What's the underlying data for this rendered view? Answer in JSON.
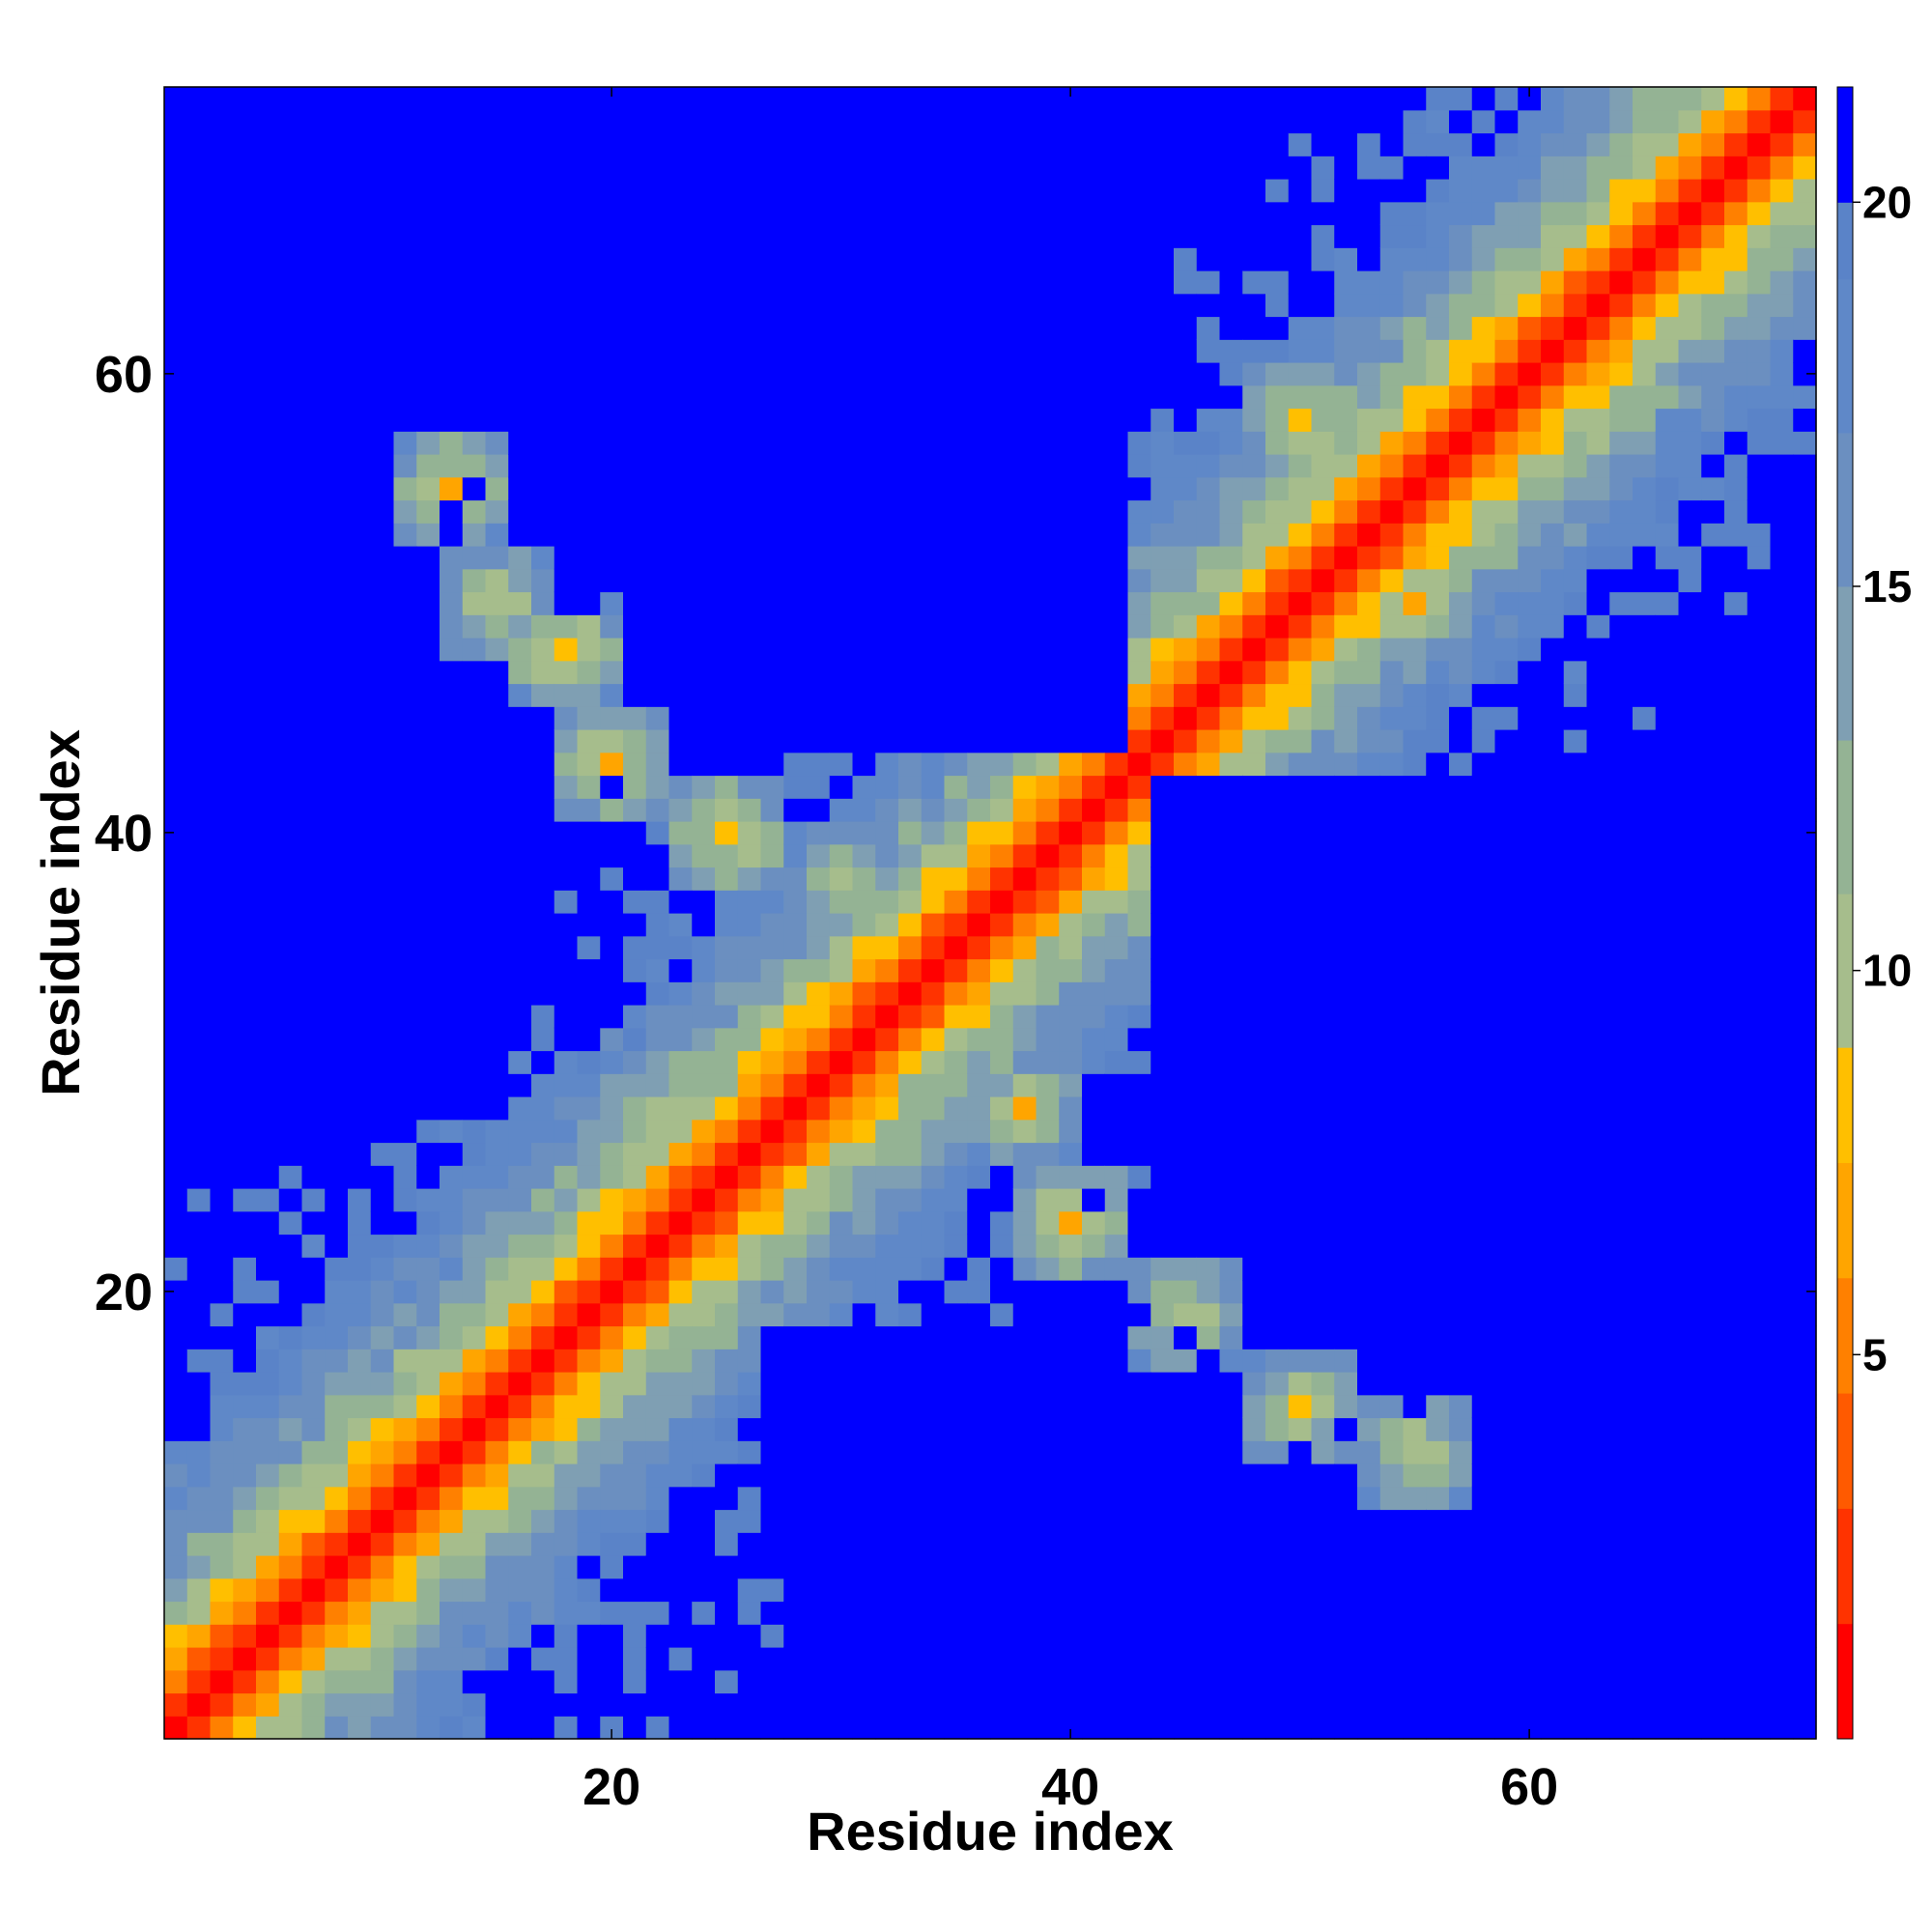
{
  "chart_data": {
    "type": "heatmap",
    "title": "",
    "xlabel": "Residue index",
    "ylabel": "Residue index",
    "n_residues": 72,
    "xlim": [
      1,
      72
    ],
    "ylim": [
      1,
      72
    ],
    "xticks": [
      20,
      40,
      60
    ],
    "yticks": [
      20,
      40,
      60
    ],
    "colorbar": {
      "range": [
        0,
        21.5
      ],
      "ticks": [
        5,
        10,
        15,
        20
      ],
      "scale": [
        {
          "max": 1.5,
          "color": "#ff0000"
        },
        {
          "max": 3.0,
          "color": "#ff3300"
        },
        {
          "max": 4.5,
          "color": "#ff5a00"
        },
        {
          "max": 6.0,
          "color": "#ff8000"
        },
        {
          "max": 7.5,
          "color": "#ffa500"
        },
        {
          "max": 9.0,
          "color": "#ffbf00"
        },
        {
          "max": 11.0,
          "color": "#a6bd8c"
        },
        {
          "max": 13.0,
          "color": "#94b394"
        },
        {
          "max": 15.0,
          "color": "#7f9fb3"
        },
        {
          "max": 17.0,
          "color": "#6b8fc0"
        },
        {
          "max": 19.0,
          "color": "#5f88c8"
        },
        {
          "max": 20.0,
          "color": "#5a83c8"
        },
        {
          "max": 99,
          "color": "#0000ff"
        }
      ]
    },
    "value_description": "Residue-residue distance map; value for residues i,j approximated from the figure",
    "diagonal_profile": [
      [
        0,
        0.5
      ],
      [
        1,
        2.5
      ],
      [
        2,
        5
      ],
      [
        3,
        7.5
      ],
      [
        4,
        9.5
      ],
      [
        5,
        11
      ],
      [
        6,
        12.5
      ],
      [
        7,
        14
      ],
      [
        8,
        15.5
      ],
      [
        9,
        16.5
      ],
      [
        10,
        17.5
      ],
      [
        11,
        18.5
      ],
      [
        12,
        19.5
      ]
    ],
    "secondary_contacts": [
      {
        "i": 30,
        "j": 38,
        "value": 8
      },
      {
        "i": 20,
        "j": 43,
        "value": 6
      },
      {
        "i": 15,
        "j": 50,
        "value": 7
      },
      {
        "i": 13,
        "j": 55,
        "value": 6
      },
      {
        "i": 25,
        "j": 40,
        "value": 6
      },
      {
        "i": 18,
        "j": 48,
        "value": 6
      },
      {
        "i": 40,
        "j": 23,
        "value": 6
      },
      {
        "i": 45,
        "j": 19,
        "value": 7
      },
      {
        "i": 50,
        "j": 15,
        "value": 7
      },
      {
        "i": 55,
        "j": 13,
        "value": 7
      },
      {
        "i": 38,
        "j": 28,
        "value": 7
      },
      {
        "i": 55,
        "j": 50,
        "value": 6
      },
      {
        "i": 50,
        "j": 58,
        "value": 6
      }
    ],
    "far_regions": [
      {
        "i_range": [
          6,
          15
        ],
        "j_range": [
          28,
          38
        ]
      },
      {
        "i_range": [
          28,
          42
        ],
        "j_range": [
          44,
          72
        ]
      },
      {
        "i_range": [
          44,
          72
        ],
        "j_range": [
          22,
          42
        ]
      },
      {
        "i_range": [
          27,
          40
        ],
        "j_range": [
          8,
          18
        ]
      },
      {
        "i_range": [
          1,
          6
        ],
        "j_range": [
          63,
          72
        ]
      },
      {
        "i_range": [
          66,
          72
        ],
        "j_range": [
          1,
          28
        ]
      }
    ]
  }
}
